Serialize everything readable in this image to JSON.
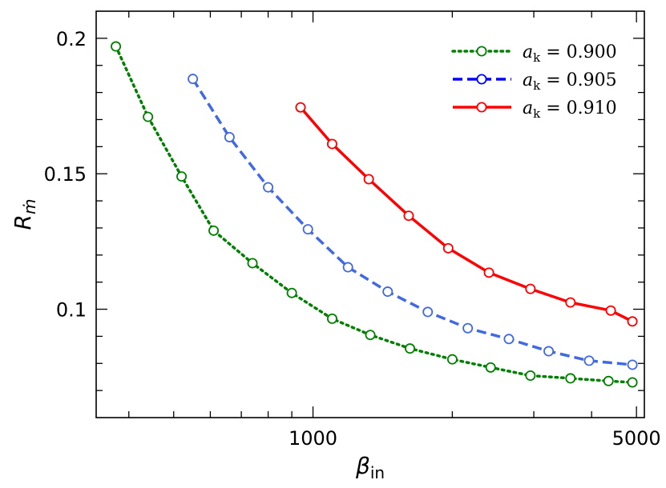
{
  "chart_data": {
    "type": "line",
    "xscale": "log",
    "xlabel": "β",
    "xlabel_sub": "in",
    "ylabel": "R",
    "ylabel_sub": "ṁ",
    "xlim": [
      340,
      5200
    ],
    "ylim": [
      0.06,
      0.21
    ],
    "xticks_major": [
      {
        "value": 1000,
        "label": "1000"
      },
      {
        "value": 5000,
        "label": "5000"
      }
    ],
    "yticks_major": [
      {
        "value": 0.1,
        "label": "0.1"
      },
      {
        "value": 0.15,
        "label": "0.15"
      },
      {
        "value": 0.2,
        "label": "0.2"
      }
    ],
    "legend_position": "top-right",
    "series": [
      {
        "name": "a_k = 0.900",
        "legend_main": "a",
        "legend_sub": "k",
        "legend_value": " = 0.900",
        "color": "#008000",
        "dash": "dotted",
        "x": [
          375,
          440,
          520,
          610,
          740,
          900,
          1100,
          1330,
          1620,
          2000,
          2420,
          2950,
          3600,
          4350,
          4900
        ],
        "y": [
          0.197,
          0.171,
          0.149,
          0.129,
          0.117,
          0.106,
          0.0965,
          0.0905,
          0.0855,
          0.0815,
          0.0785,
          0.0755,
          0.0745,
          0.0735,
          0.073
        ]
      },
      {
        "name": "a_k = 0.905",
        "legend_main": "a",
        "legend_sub": "k",
        "legend_value": " = 0.905",
        "color": "#4169E1",
        "marker_color": "#4169E1",
        "dash": "dashed",
        "x": [
          550,
          660,
          800,
          975,
          1190,
          1450,
          1770,
          2160,
          2650,
          3230,
          3950,
          4900
        ],
        "y": [
          0.185,
          0.1635,
          0.145,
          0.1295,
          0.1155,
          0.1065,
          0.099,
          0.093,
          0.089,
          0.0845,
          0.081,
          0.0795
        ]
      },
      {
        "name": "a_k = 0.910",
        "legend_main": "a",
        "legend_sub": "k",
        "legend_value": " = 0.910",
        "color": "#ff0000",
        "dash": "solid",
        "x": [
          940,
          1100,
          1320,
          1610,
          1960,
          2400,
          2950,
          3600,
          4400,
          4900
        ],
        "y": [
          0.1745,
          0.161,
          0.148,
          0.1345,
          0.1225,
          0.1135,
          0.1075,
          0.1025,
          0.0995,
          0.0955
        ]
      }
    ]
  }
}
